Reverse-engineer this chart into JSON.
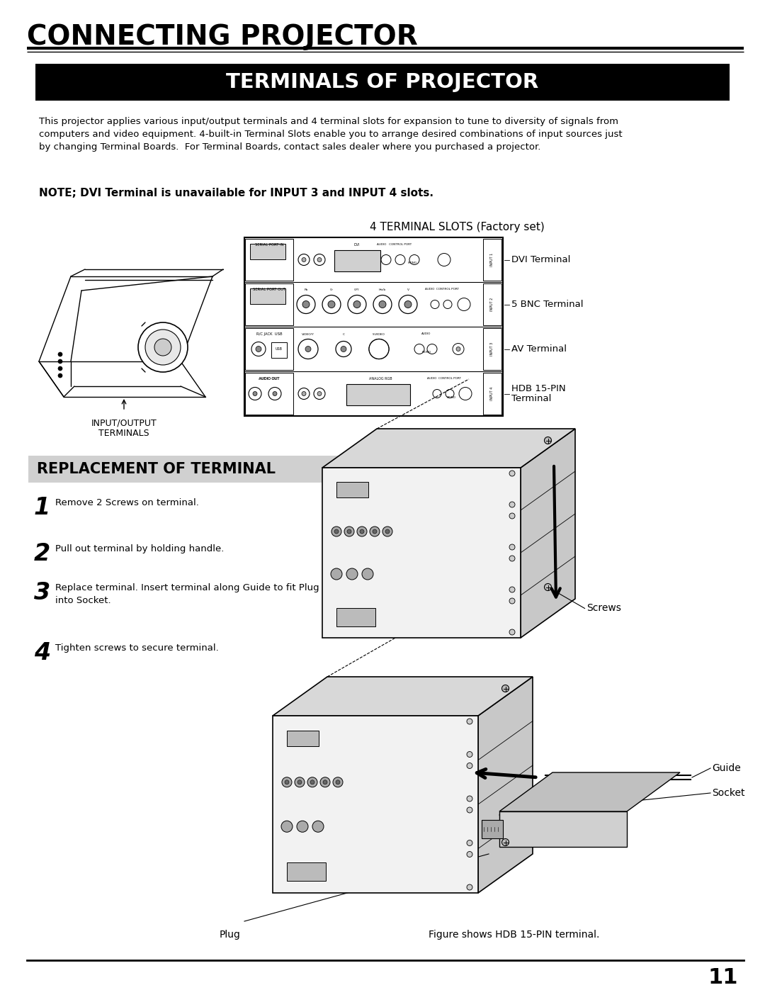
{
  "page_bg": "#ffffff",
  "page_number": "11",
  "main_title": "CONNECTING PROJECTOR",
  "section1_title": "TERMINALS OF PROJECTOR",
  "section1_title_bg": "#000000",
  "section1_title_color": "#ffffff",
  "body_text": "This projector applies various input/output terminals and 4 terminal slots for expansion to tune to diversity of signals from\ncomputers and video equipment. 4-built-in Terminal Slots enable you to arrange desired combinations of input sources just\nby changing Terminal Boards.  For Terminal Boards, contact sales dealer where you purchased a projector.",
  "note_text": "NOTE; DVI Terminal is unavailable for INPUT 3 and INPUT 4 slots.",
  "terminal_slots_label": "4 TERMINAL SLOTS (Factory set)",
  "input_output_label": "INPUT/OUTPUT\nTERMINALS",
  "terminal_labels": [
    "DVI Terminal",
    "5 BNC Terminal",
    "AV Terminal",
    "HDB 15-PIN\nTerminal"
  ],
  "section2_title": "REPLACEMENT OF TERMINAL",
  "section2_title_bg": "#d0d0d0",
  "section2_title_color": "#000000",
  "steps": [
    {
      "num": "1",
      "text": "Remove 2 Screws on terminal."
    },
    {
      "num": "2",
      "text": "Pull out terminal by holding handle."
    },
    {
      "num": "3",
      "text": "Replace terminal. Insert terminal along Guide to fit Plug\ninto Socket."
    },
    {
      "num": "4",
      "text": "Tighten screws to secure terminal."
    }
  ],
  "screws_label": "Screws",
  "guide_label": "Guide",
  "socket_label": "Socket",
  "plug_label": "Plug",
  "figure_caption": "Figure shows HDB 15-PIN terminal."
}
